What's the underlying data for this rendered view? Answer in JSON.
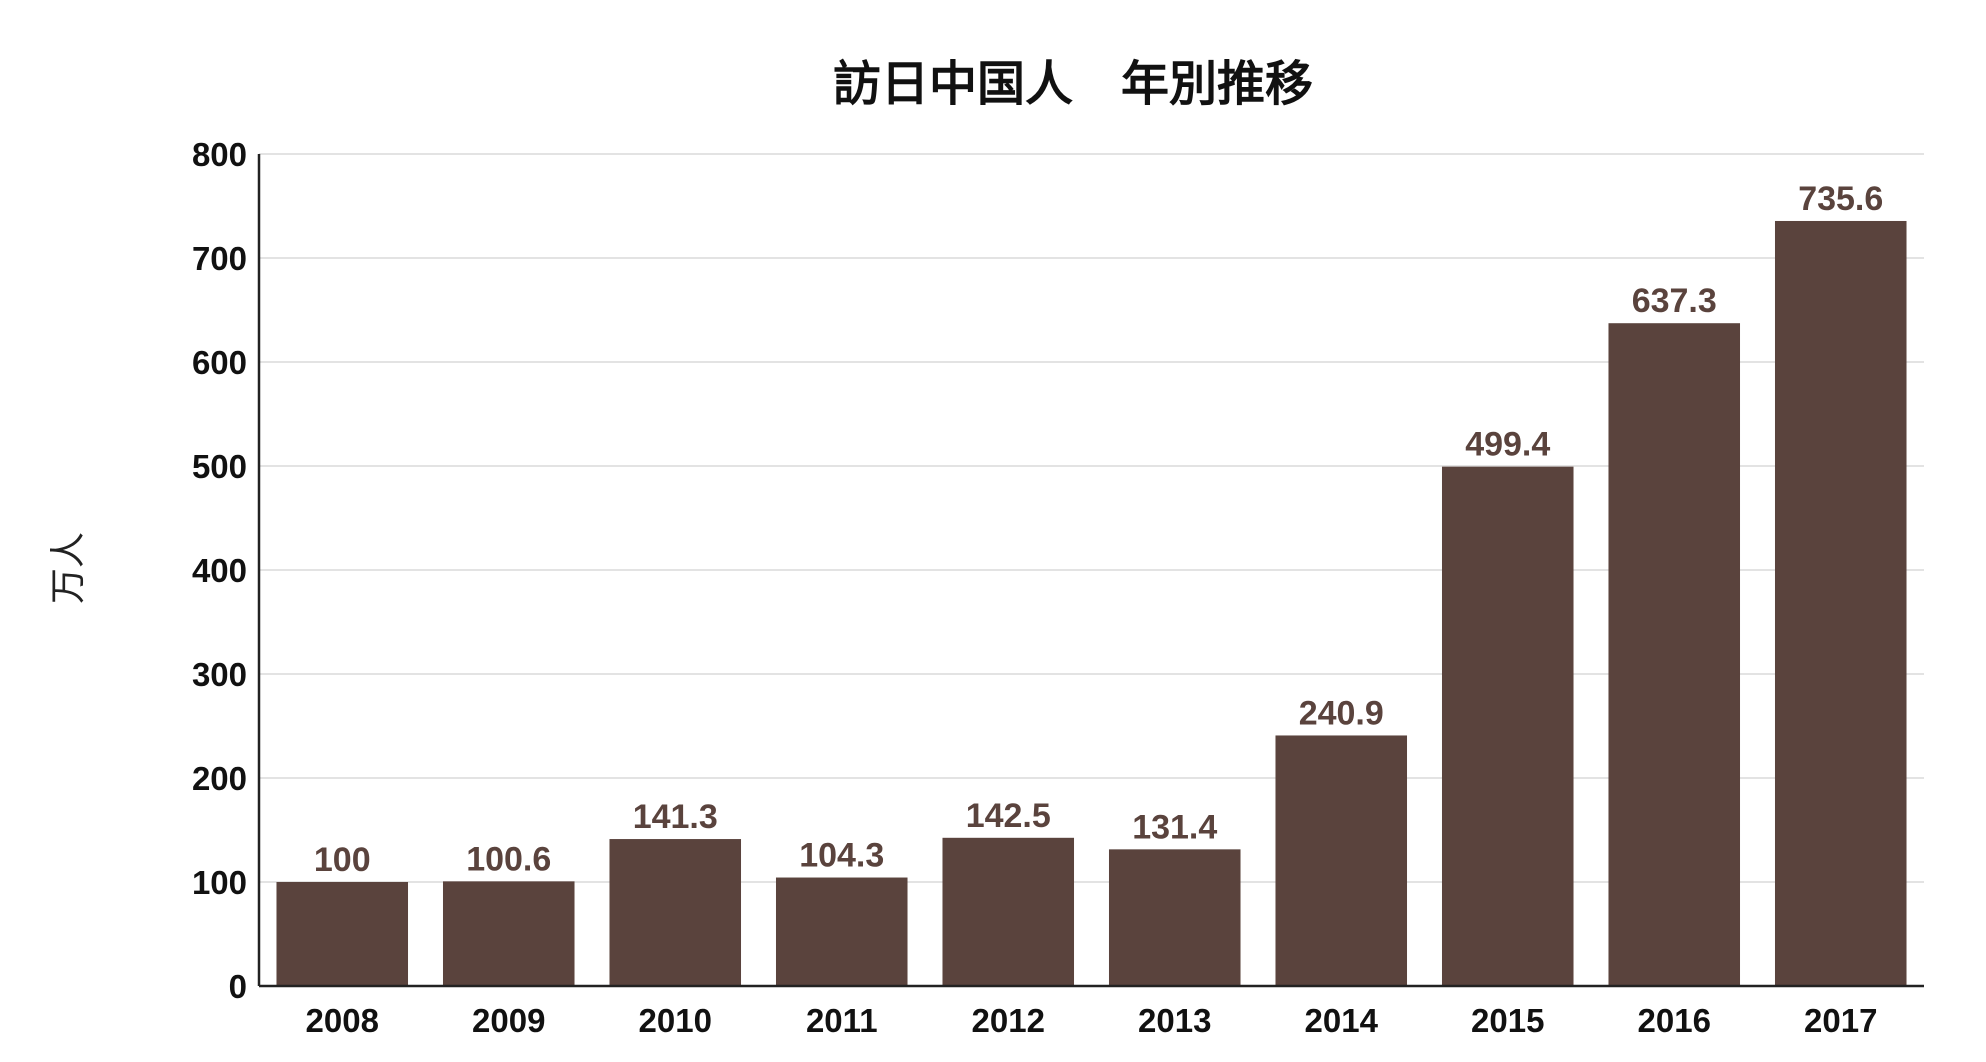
{
  "chart_data": {
    "type": "bar",
    "title": "訪日中国人　年別推移",
    "ylabel": "万人",
    "xlabel": "",
    "categories": [
      "2008",
      "2009",
      "2010",
      "2011",
      "2012",
      "2013",
      "2014",
      "2015",
      "2016",
      "2017"
    ],
    "values": [
      100,
      100.6,
      141.3,
      104.3,
      142.5,
      131.4,
      240.9,
      499.4,
      637.3,
      735.6
    ],
    "data_labels": [
      "100",
      "100.6",
      "141.3",
      "104.3",
      "142.5",
      "131.4",
      "240.9",
      "499.4",
      "637.3",
      "735.6"
    ],
    "ylim": [
      0,
      800
    ],
    "yticks": [
      "0",
      "100",
      "200",
      "300",
      "400",
      "500",
      "600",
      "700",
      "800"
    ],
    "ytick_values": [
      0,
      100,
      200,
      300,
      400,
      500,
      600,
      700,
      800
    ],
    "grid": true,
    "legend": "none",
    "colors": {
      "bar": "#5a433d",
      "label": "#5a433d"
    }
  }
}
